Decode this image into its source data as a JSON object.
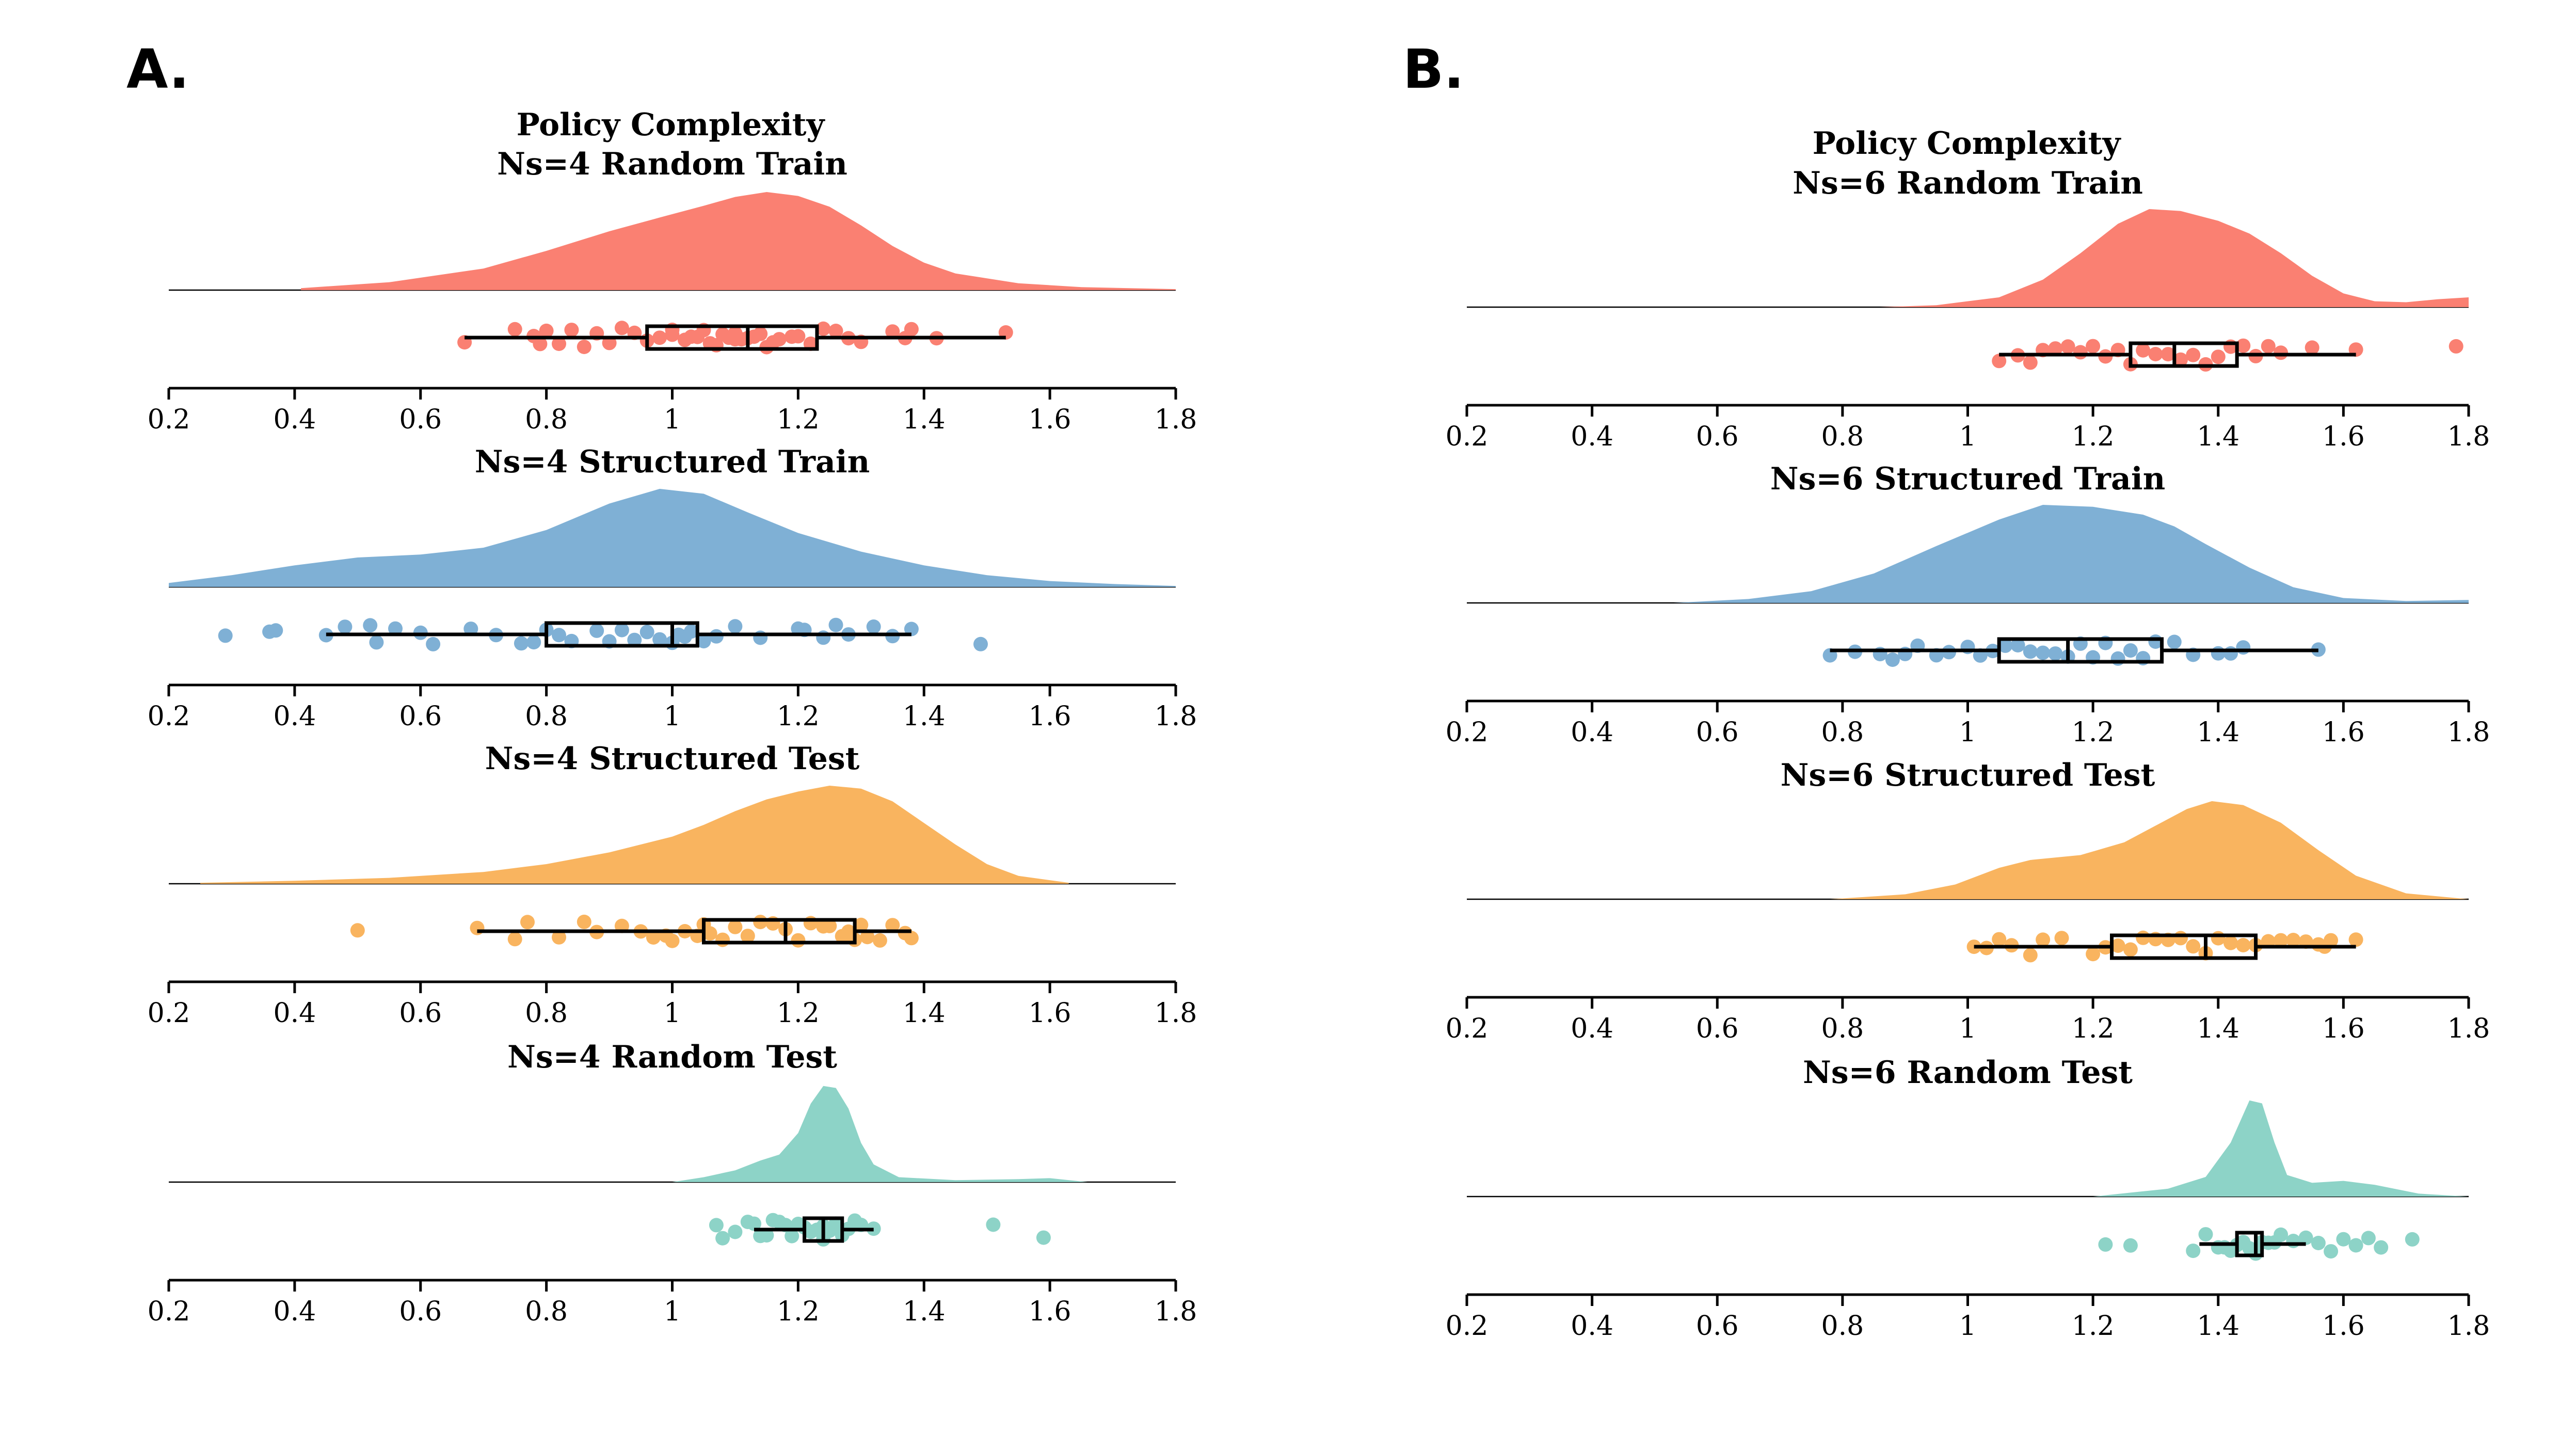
{
  "panels": [
    {
      "label": "A.",
      "header": "Policy Complexity"
    },
    {
      "label": "B.",
      "header": "Policy Complexity"
    }
  ],
  "chart_data": [
    {
      "type": "raincloud",
      "panel": "A.",
      "title": "Ns=4 Random Train",
      "color": "#FA8072",
      "xlim": [
        0.2,
        1.8
      ],
      "xticks": [
        0.2,
        0.4,
        0.6,
        0.8,
        1,
        1.2,
        1.4,
        1.6,
        1.8
      ],
      "density_range": [
        0.41,
        1.8
      ],
      "density": [
        [
          0.41,
          0.02
        ],
        [
          0.55,
          0.08
        ],
        [
          0.7,
          0.22
        ],
        [
          0.8,
          0.4
        ],
        [
          0.9,
          0.6
        ],
        [
          0.98,
          0.74
        ],
        [
          1.05,
          0.86
        ],
        [
          1.1,
          0.95
        ],
        [
          1.15,
          1.0
        ],
        [
          1.2,
          0.96
        ],
        [
          1.25,
          0.85
        ],
        [
          1.3,
          0.66
        ],
        [
          1.35,
          0.45
        ],
        [
          1.4,
          0.28
        ],
        [
          1.45,
          0.17
        ],
        [
          1.55,
          0.07
        ],
        [
          1.65,
          0.03
        ],
        [
          1.8,
          0.01
        ]
      ],
      "points": [
        0.67,
        0.75,
        0.78,
        0.79,
        0.8,
        0.82,
        0.84,
        0.86,
        0.88,
        0.9,
        0.92,
        0.94,
        0.96,
        0.98,
        1.0,
        1.0,
        1.02,
        1.03,
        1.04,
        1.05,
        1.06,
        1.07,
        1.08,
        1.09,
        1.1,
        1.1,
        1.11,
        1.12,
        1.13,
        1.14,
        1.15,
        1.16,
        1.17,
        1.19,
        1.2,
        1.22,
        1.24,
        1.26,
        1.28,
        1.3,
        1.35,
        1.37,
        1.38,
        1.42,
        1.53
      ],
      "box": {
        "whisker_low": 0.67,
        "q1": 0.96,
        "median": 1.12,
        "q3": 1.23,
        "whisker_high": 1.53
      }
    },
    {
      "type": "raincloud",
      "panel": "A.",
      "title": "Ns=4 Structured Train",
      "color": "#7FB0D5",
      "xlim": [
        0.2,
        1.8
      ],
      "xticks": [
        0.2,
        0.4,
        0.6,
        0.8,
        1,
        1.2,
        1.4,
        1.6,
        1.8
      ],
      "density_range": [
        0.2,
        1.8
      ],
      "density": [
        [
          0.2,
          0.04
        ],
        [
          0.3,
          0.12
        ],
        [
          0.4,
          0.22
        ],
        [
          0.5,
          0.3
        ],
        [
          0.6,
          0.33
        ],
        [
          0.7,
          0.4
        ],
        [
          0.8,
          0.58
        ],
        [
          0.9,
          0.85
        ],
        [
          0.98,
          1.0
        ],
        [
          1.05,
          0.95
        ],
        [
          1.12,
          0.76
        ],
        [
          1.2,
          0.55
        ],
        [
          1.3,
          0.36
        ],
        [
          1.4,
          0.22
        ],
        [
          1.5,
          0.12
        ],
        [
          1.6,
          0.06
        ],
        [
          1.7,
          0.03
        ],
        [
          1.8,
          0.01
        ]
      ],
      "points": [
        0.29,
        0.36,
        0.37,
        0.45,
        0.48,
        0.52,
        0.53,
        0.56,
        0.6,
        0.62,
        0.68,
        0.72,
        0.76,
        0.78,
        0.8,
        0.82,
        0.84,
        0.88,
        0.9,
        0.92,
        0.94,
        0.96,
        0.98,
        1.0,
        1.01,
        1.02,
        1.03,
        1.05,
        1.07,
        1.1,
        1.14,
        1.2,
        1.21,
        1.24,
        1.26,
        1.28,
        1.32,
        1.35,
        1.38,
        1.49
      ],
      "box": {
        "whisker_low": 0.45,
        "q1": 0.8,
        "median": 1.0,
        "q3": 1.04,
        "whisker_high": 1.38
      }
    },
    {
      "type": "raincloud",
      "panel": "A.",
      "title": "Ns=4 Structured Test",
      "color": "#F9B45F",
      "xlim": [
        0.2,
        1.8
      ],
      "xticks": [
        0.2,
        0.4,
        0.6,
        0.8,
        1,
        1.2,
        1.4,
        1.6,
        1.8
      ],
      "density_range": [
        0.25,
        1.63
      ],
      "density": [
        [
          0.25,
          0.01
        ],
        [
          0.4,
          0.03
        ],
        [
          0.55,
          0.06
        ],
        [
          0.7,
          0.12
        ],
        [
          0.8,
          0.2
        ],
        [
          0.9,
          0.32
        ],
        [
          1.0,
          0.48
        ],
        [
          1.05,
          0.6
        ],
        [
          1.1,
          0.74
        ],
        [
          1.15,
          0.86
        ],
        [
          1.2,
          0.94
        ],
        [
          1.25,
          1.0
        ],
        [
          1.3,
          0.97
        ],
        [
          1.35,
          0.84
        ],
        [
          1.4,
          0.62
        ],
        [
          1.45,
          0.4
        ],
        [
          1.5,
          0.2
        ],
        [
          1.55,
          0.08
        ],
        [
          1.63,
          0.01
        ]
      ],
      "points": [
        0.5,
        0.69,
        0.75,
        0.77,
        0.82,
        0.86,
        0.88,
        0.92,
        0.95,
        0.97,
        0.99,
        1.0,
        1.02,
        1.04,
        1.05,
        1.06,
        1.08,
        1.1,
        1.12,
        1.14,
        1.16,
        1.18,
        1.2,
        1.22,
        1.24,
        1.25,
        1.27,
        1.28,
        1.29,
        1.3,
        1.31,
        1.33,
        1.35,
        1.37,
        1.38
      ],
      "box": {
        "whisker_low": 0.69,
        "q1": 1.05,
        "median": 1.18,
        "q3": 1.29,
        "whisker_high": 1.38
      }
    },
    {
      "type": "raincloud",
      "panel": "A.",
      "title": "Ns=4 Random Test",
      "color": "#8DD3C7",
      "xlim": [
        0.2,
        1.8
      ],
      "xticks": [
        0.2,
        0.4,
        0.6,
        0.8,
        1,
        1.2,
        1.4,
        1.6,
        1.8
      ],
      "density_range": [
        1.0,
        1.66
      ],
      "density": [
        [
          1.0,
          0.0
        ],
        [
          1.05,
          0.05
        ],
        [
          1.1,
          0.12
        ],
        [
          1.14,
          0.22
        ],
        [
          1.17,
          0.28
        ],
        [
          1.2,
          0.5
        ],
        [
          1.22,
          0.8
        ],
        [
          1.24,
          0.98
        ],
        [
          1.26,
          0.96
        ],
        [
          1.28,
          0.75
        ],
        [
          1.3,
          0.4
        ],
        [
          1.32,
          0.18
        ],
        [
          1.36,
          0.05
        ],
        [
          1.45,
          0.02
        ],
        [
          1.55,
          0.03
        ],
        [
          1.6,
          0.04
        ],
        [
          1.66,
          0.0
        ]
      ],
      "points": [
        1.07,
        1.08,
        1.1,
        1.12,
        1.13,
        1.14,
        1.15,
        1.16,
        1.17,
        1.18,
        1.19,
        1.2,
        1.21,
        1.22,
        1.23,
        1.24,
        1.24,
        1.25,
        1.26,
        1.27,
        1.28,
        1.29,
        1.3,
        1.32,
        1.51,
        1.59
      ],
      "box": {
        "whisker_low": 1.13,
        "q1": 1.21,
        "median": 1.24,
        "q3": 1.27,
        "whisker_high": 1.32
      }
    },
    {
      "type": "raincloud",
      "panel": "B.",
      "title": "Ns=6 Random Train",
      "color": "#FA8072",
      "xlim": [
        0.2,
        1.8
      ],
      "xticks": [
        0.2,
        0.4,
        0.6,
        0.8,
        1,
        1.2,
        1.4,
        1.6,
        1.8
      ],
      "density_range": [
        0.86,
        1.8
      ],
      "density": [
        [
          0.86,
          0.0
        ],
        [
          0.95,
          0.02
        ],
        [
          1.05,
          0.1
        ],
        [
          1.12,
          0.28
        ],
        [
          1.18,
          0.55
        ],
        [
          1.24,
          0.85
        ],
        [
          1.29,
          1.0
        ],
        [
          1.34,
          0.98
        ],
        [
          1.4,
          0.88
        ],
        [
          1.45,
          0.75
        ],
        [
          1.5,
          0.55
        ],
        [
          1.55,
          0.32
        ],
        [
          1.6,
          0.14
        ],
        [
          1.65,
          0.06
        ],
        [
          1.7,
          0.05
        ],
        [
          1.75,
          0.08
        ],
        [
          1.8,
          0.1
        ]
      ],
      "points": [
        1.05,
        1.08,
        1.1,
        1.12,
        1.14,
        1.16,
        1.18,
        1.2,
        1.22,
        1.24,
        1.26,
        1.28,
        1.3,
        1.32,
        1.34,
        1.36,
        1.38,
        1.4,
        1.42,
        1.44,
        1.46,
        1.48,
        1.5,
        1.55,
        1.62,
        1.78
      ],
      "box": {
        "whisker_low": 1.05,
        "q1": 1.26,
        "median": 1.33,
        "q3": 1.43,
        "whisker_high": 1.62
      }
    },
    {
      "type": "raincloud",
      "panel": "B.",
      "title": "Ns=6 Structured Train",
      "color": "#7FB0D5",
      "xlim": [
        0.2,
        1.8
      ],
      "xticks": [
        0.2,
        0.4,
        0.6,
        0.8,
        1,
        1.2,
        1.4,
        1.6,
        1.8
      ],
      "density_range": [
        0.53,
        1.8
      ],
      "density": [
        [
          0.53,
          0.0
        ],
        [
          0.65,
          0.04
        ],
        [
          0.75,
          0.12
        ],
        [
          0.85,
          0.3
        ],
        [
          0.95,
          0.58
        ],
        [
          1.05,
          0.85
        ],
        [
          1.12,
          1.0
        ],
        [
          1.2,
          0.98
        ],
        [
          1.28,
          0.9
        ],
        [
          1.33,
          0.78
        ],
        [
          1.38,
          0.6
        ],
        [
          1.45,
          0.36
        ],
        [
          1.52,
          0.16
        ],
        [
          1.6,
          0.05
        ],
        [
          1.7,
          0.02
        ],
        [
          1.8,
          0.03
        ]
      ],
      "points": [
        0.78,
        0.82,
        0.86,
        0.88,
        0.9,
        0.92,
        0.95,
        0.97,
        1.0,
        1.02,
        1.04,
        1.06,
        1.08,
        1.1,
        1.12,
        1.14,
        1.16,
        1.18,
        1.2,
        1.22,
        1.24,
        1.26,
        1.28,
        1.3,
        1.33,
        1.36,
        1.4,
        1.42,
        1.44,
        1.56
      ],
      "box": {
        "whisker_low": 0.78,
        "q1": 1.05,
        "median": 1.16,
        "q3": 1.31,
        "whisker_high": 1.56
      }
    },
    {
      "type": "raincloud",
      "panel": "B.",
      "title": "Ns=6 Structured Test",
      "color": "#F9B45F",
      "xlim": [
        0.2,
        1.8
      ],
      "xticks": [
        0.2,
        0.4,
        0.6,
        0.8,
        1,
        1.2,
        1.4,
        1.6,
        1.8
      ],
      "density_range": [
        0.78,
        1.8
      ],
      "density": [
        [
          0.78,
          0.0
        ],
        [
          0.9,
          0.05
        ],
        [
          0.98,
          0.15
        ],
        [
          1.05,
          0.32
        ],
        [
          1.1,
          0.4
        ],
        [
          1.18,
          0.45
        ],
        [
          1.25,
          0.58
        ],
        [
          1.3,
          0.75
        ],
        [
          1.35,
          0.92
        ],
        [
          1.39,
          1.0
        ],
        [
          1.44,
          0.96
        ],
        [
          1.5,
          0.78
        ],
        [
          1.56,
          0.5
        ],
        [
          1.62,
          0.24
        ],
        [
          1.7,
          0.06
        ],
        [
          1.8,
          0.0
        ]
      ],
      "points": [
        1.01,
        1.03,
        1.05,
        1.07,
        1.1,
        1.12,
        1.15,
        1.2,
        1.22,
        1.24,
        1.26,
        1.28,
        1.3,
        1.32,
        1.34,
        1.36,
        1.38,
        1.4,
        1.42,
        1.44,
        1.46,
        1.48,
        1.5,
        1.52,
        1.54,
        1.56,
        1.57,
        1.58,
        1.62
      ],
      "box": {
        "whisker_low": 1.01,
        "q1": 1.23,
        "median": 1.38,
        "q3": 1.46,
        "whisker_high": 1.62
      }
    },
    {
      "type": "raincloud",
      "panel": "B.",
      "title": "Ns=6 Random Test",
      "color": "#8DD3C7",
      "xlim": [
        0.2,
        1.8
      ],
      "xticks": [
        0.2,
        0.4,
        0.6,
        0.8,
        1,
        1.2,
        1.4,
        1.6,
        1.8
      ],
      "density_range": [
        1.2,
        1.8
      ],
      "density": [
        [
          1.2,
          0.0
        ],
        [
          1.26,
          0.04
        ],
        [
          1.32,
          0.08
        ],
        [
          1.38,
          0.2
        ],
        [
          1.42,
          0.55
        ],
        [
          1.45,
          0.98
        ],
        [
          1.47,
          0.95
        ],
        [
          1.49,
          0.55
        ],
        [
          1.51,
          0.22
        ],
        [
          1.55,
          0.14
        ],
        [
          1.6,
          0.16
        ],
        [
          1.65,
          0.12
        ],
        [
          1.72,
          0.03
        ],
        [
          1.8,
          0.0
        ]
      ],
      "points": [
        1.22,
        1.26,
        1.36,
        1.38,
        1.4,
        1.41,
        1.42,
        1.43,
        1.44,
        1.45,
        1.46,
        1.47,
        1.48,
        1.49,
        1.5,
        1.52,
        1.54,
        1.56,
        1.58,
        1.6,
        1.62,
        1.64,
        1.66,
        1.71
      ],
      "box": {
        "whisker_low": 1.37,
        "q1": 1.43,
        "median": 1.46,
        "q3": 1.47,
        "whisker_high": 1.54
      }
    }
  ]
}
